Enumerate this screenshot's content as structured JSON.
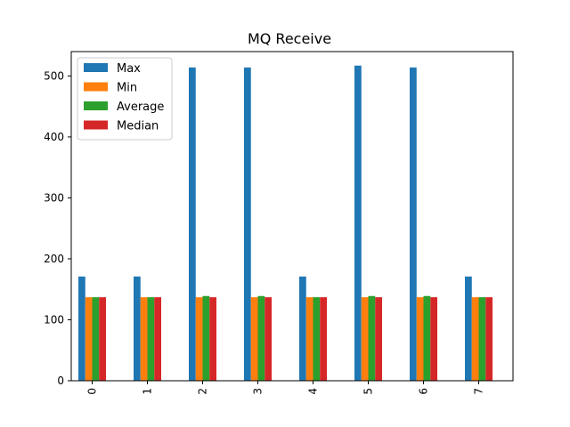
{
  "chart_data": {
    "type": "bar",
    "title": "MQ Receive",
    "xlabel": "",
    "ylabel": "",
    "categories": [
      "0",
      "1",
      "2",
      "3",
      "4",
      "5",
      "6",
      "7"
    ],
    "ylim": [
      0,
      540
    ],
    "yticks": [
      0,
      100,
      200,
      300,
      400,
      500
    ],
    "grid": false,
    "legend_position": "top-left",
    "series": [
      {
        "name": "Max",
        "color": "#1f77b4",
        "values": [
          171,
          171,
          514,
          514,
          171,
          517,
          514,
          171
        ]
      },
      {
        "name": "Min",
        "color": "#ff7f0e",
        "values": [
          137,
          137,
          137,
          137,
          137,
          137,
          137,
          137
        ]
      },
      {
        "name": "Average",
        "color": "#2ca02c",
        "values": [
          137,
          137,
          139,
          139,
          137,
          139,
          139,
          137
        ]
      },
      {
        "name": "Median",
        "color": "#d62728",
        "values": [
          137,
          137,
          137,
          137,
          137,
          137,
          137,
          137
        ]
      }
    ]
  }
}
